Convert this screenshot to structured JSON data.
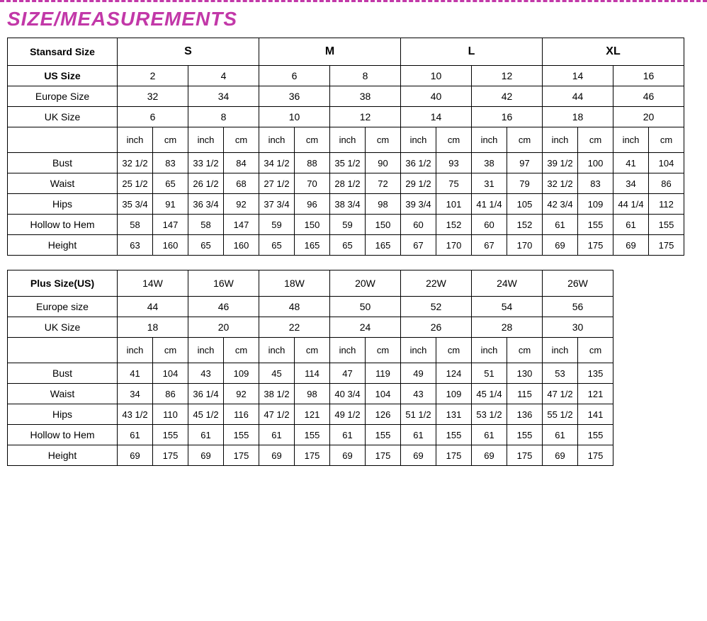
{
  "title": "SIZE/MEASUREMENTS",
  "colors": {
    "accent": "#c238a8",
    "border": "#000000",
    "background": "#ffffff",
    "text": "#000000"
  },
  "table1": {
    "header_label": "Stansard Size",
    "standard_sizes": [
      "S",
      "M",
      "L",
      "XL"
    ],
    "us_label": "US Size",
    "us_sizes": [
      "2",
      "4",
      "6",
      "8",
      "10",
      "12",
      "14",
      "16"
    ],
    "eu_label": "Europe Size",
    "eu_sizes": [
      "32",
      "34",
      "36",
      "38",
      "40",
      "42",
      "44",
      "46"
    ],
    "uk_label": "UK Size",
    "uk_sizes": [
      "6",
      "8",
      "10",
      "12",
      "14",
      "16",
      "18",
      "20"
    ],
    "unit_inch": "inch",
    "unit_cm": "cm",
    "measurements": [
      {
        "label": "Bust",
        "vals": [
          "32 1/2",
          "83",
          "33 1/2",
          "84",
          "34 1/2",
          "88",
          "35 1/2",
          "90",
          "36 1/2",
          "93",
          "38",
          "97",
          "39 1/2",
          "100",
          "41",
          "104"
        ]
      },
      {
        "label": "Waist",
        "vals": [
          "25 1/2",
          "65",
          "26 1/2",
          "68",
          "27 1/2",
          "70",
          "28 1/2",
          "72",
          "29 1/2",
          "75",
          "31",
          "79",
          "32 1/2",
          "83",
          "34",
          "86"
        ]
      },
      {
        "label": "Hips",
        "vals": [
          "35 3/4",
          "91",
          "36 3/4",
          "92",
          "37 3/4",
          "96",
          "38 3/4",
          "98",
          "39 3/4",
          "101",
          "41 1/4",
          "105",
          "42 3/4",
          "109",
          "44 1/4",
          "112"
        ]
      },
      {
        "label": "Hollow to Hem",
        "vals": [
          "58",
          "147",
          "58",
          "147",
          "59",
          "150",
          "59",
          "150",
          "60",
          "152",
          "60",
          "152",
          "61",
          "155",
          "61",
          "155"
        ]
      },
      {
        "label": "Height",
        "vals": [
          "63",
          "160",
          "65",
          "160",
          "65",
          "165",
          "65",
          "165",
          "67",
          "170",
          "67",
          "170",
          "69",
          "175",
          "69",
          "175"
        ]
      }
    ]
  },
  "table2": {
    "header_label": "Plus Size(US)",
    "plus_sizes": [
      "14W",
      "16W",
      "18W",
      "20W",
      "22W",
      "24W",
      "26W"
    ],
    "eu_label": "Europe size",
    "eu_sizes": [
      "44",
      "46",
      "48",
      "50",
      "52",
      "54",
      "56"
    ],
    "uk_label": "UK Size",
    "uk_sizes": [
      "18",
      "20",
      "22",
      "24",
      "26",
      "28",
      "30"
    ],
    "unit_inch": "inch",
    "unit_cm": "cm",
    "measurements": [
      {
        "label": "Bust",
        "vals": [
          "41",
          "104",
          "43",
          "109",
          "45",
          "114",
          "47",
          "119",
          "49",
          "124",
          "51",
          "130",
          "53",
          "135"
        ]
      },
      {
        "label": "Waist",
        "vals": [
          "34",
          "86",
          "36 1/4",
          "92",
          "38 1/2",
          "98",
          "40 3/4",
          "104",
          "43",
          "109",
          "45 1/4",
          "115",
          "47 1/2",
          "121"
        ]
      },
      {
        "label": "Hips",
        "vals": [
          "43 1/2",
          "110",
          "45 1/2",
          "116",
          "47 1/2",
          "121",
          "49 1/2",
          "126",
          "51 1/2",
          "131",
          "53 1/2",
          "136",
          "55 1/2",
          "141"
        ]
      },
      {
        "label": "Hollow to Hem",
        "vals": [
          "61",
          "155",
          "61",
          "155",
          "61",
          "155",
          "61",
          "155",
          "61",
          "155",
          "61",
          "155",
          "61",
          "155"
        ]
      },
      {
        "label": "Height",
        "vals": [
          "69",
          "175",
          "69",
          "175",
          "69",
          "175",
          "69",
          "175",
          "69",
          "175",
          "69",
          "175",
          "69",
          "175"
        ]
      }
    ]
  }
}
